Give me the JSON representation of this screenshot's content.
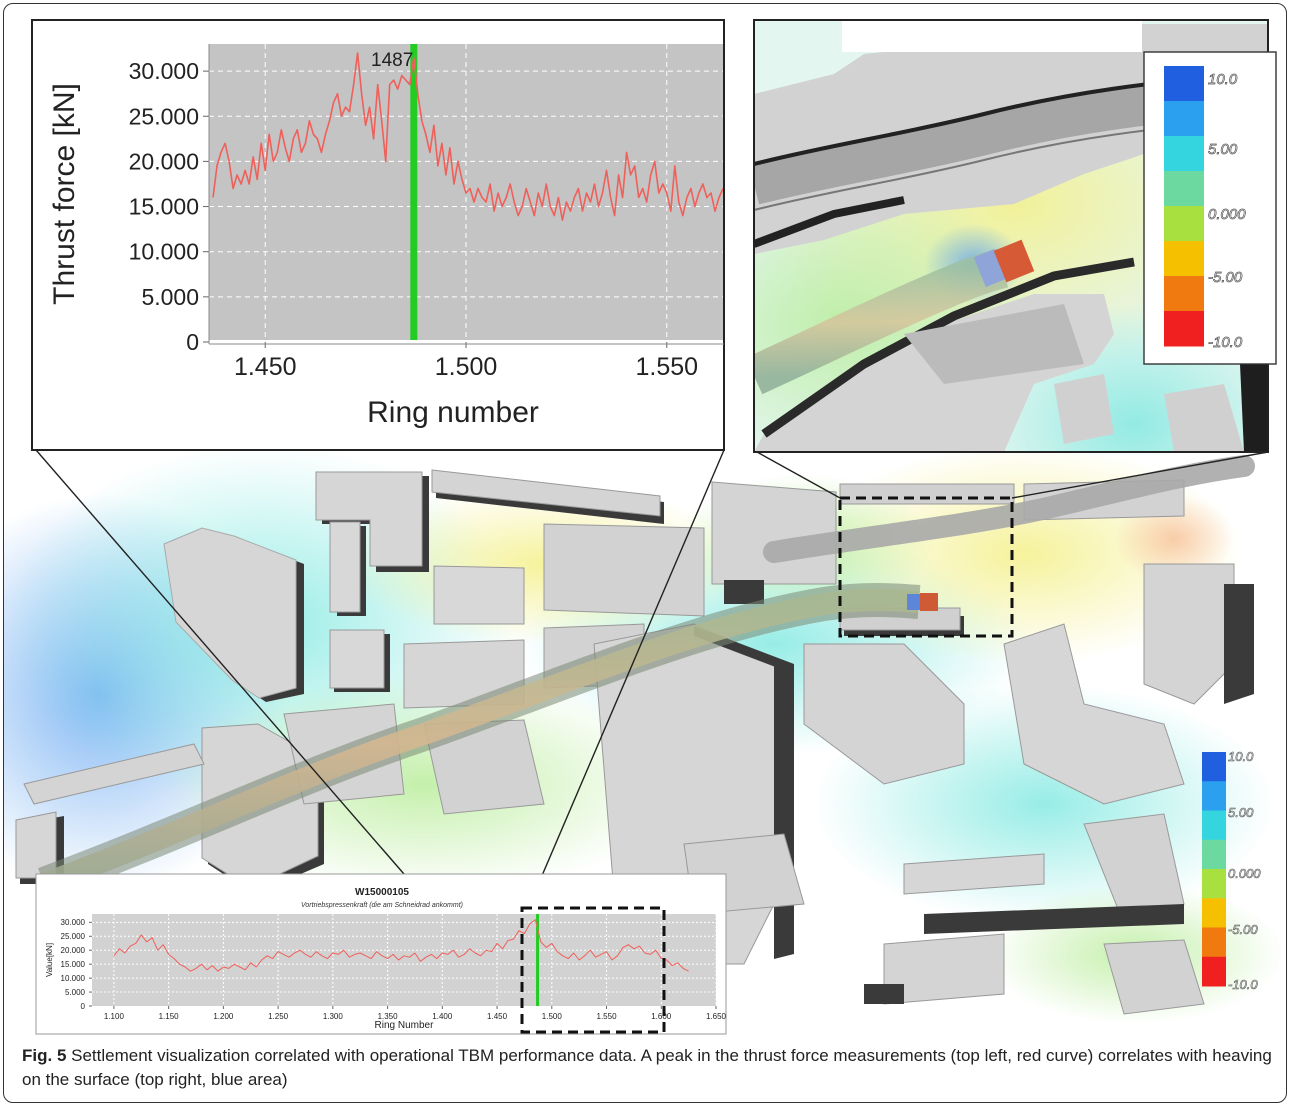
{
  "figure": {
    "caption_label": "Fig. 5",
    "caption_text": "Settlement visualization correlated with operational TBM performance data. A peak in the thrust force measurements (top left, red curve) correlates with heaving on the surface (top right, blue area)"
  },
  "colors": {
    "curve": "#f0605a",
    "marker": "#22cc22",
    "plot_bg": "#c4c4c4",
    "building": "#d2d2d2",
    "shadow": "#3a3a3a"
  },
  "legend_scale": {
    "labels": [
      "10.0",
      "5.00",
      "0.000",
      "-5.00",
      "-10.0"
    ],
    "colors": [
      "#1f5fe0",
      "#2aa0ee",
      "#35d5e0",
      "#6cd9a0",
      "#a8e040",
      "#f5c000",
      "#f07a10",
      "#f02020"
    ]
  },
  "chart_data": [
    {
      "id": "zoom",
      "type": "line",
      "title": "",
      "xlabel": "Ring number",
      "ylabel": "Thrust force [kN]",
      "xlim": [
        1436,
        1564
      ],
      "ylim": [
        0,
        33000
      ],
      "xticks": [
        1450,
        1500,
        1550
      ],
      "xtick_labels": [
        "1.450",
        "1.500",
        "1.550"
      ],
      "yticks": [
        0,
        5000,
        10000,
        15000,
        20000,
        25000,
        30000
      ],
      "ytick_labels": [
        "0",
        "5.000",
        "10.000",
        "15.000",
        "20.000",
        "25.000",
        "30.000"
      ],
      "marker_x": 1487,
      "marker_label": "1487",
      "grid": true,
      "series": [
        {
          "x": [
            1437,
            1438,
            1439,
            1440,
            1441,
            1442,
            1443,
            1444,
            1445,
            1446,
            1447,
            1448,
            1449,
            1450,
            1451,
            1452,
            1453,
            1454,
            1455,
            1456,
            1457,
            1458,
            1459,
            1460,
            1461,
            1462,
            1463,
            1464,
            1465,
            1466,
            1467,
            1468,
            1469,
            1470,
            1471,
            1472,
            1473,
            1474,
            1475,
            1476,
            1477,
            1478,
            1479,
            1480,
            1481,
            1482,
            1483,
            1484,
            1485,
            1486,
            1487,
            1488,
            1489,
            1490,
            1491,
            1492,
            1493,
            1494,
            1495,
            1496,
            1497,
            1498,
            1499,
            1500,
            1501,
            1502,
            1503,
            1504,
            1505,
            1506,
            1507,
            1508,
            1509,
            1510,
            1511,
            1512,
            1513,
            1514,
            1515,
            1516,
            1517,
            1518,
            1519,
            1520,
            1521,
            1522,
            1523,
            1524,
            1525,
            1526,
            1527,
            1528,
            1529,
            1530,
            1531,
            1532,
            1533,
            1534,
            1535,
            1536,
            1537,
            1538,
            1539,
            1540,
            1541,
            1542,
            1543,
            1544,
            1545,
            1546,
            1547,
            1548,
            1549,
            1550,
            1551,
            1552,
            1553,
            1554,
            1555,
            1556,
            1557,
            1558,
            1559,
            1560,
            1561,
            1562,
            1563,
            1564
          ],
          "y": [
            16000,
            19500,
            21000,
            22000,
            20000,
            17000,
            18500,
            17500,
            19000,
            17500,
            20500,
            18000,
            22000,
            19000,
            23000,
            20000,
            21000,
            23500,
            21500,
            20000,
            22500,
            23500,
            21000,
            22000,
            24500,
            23000,
            22500,
            21000,
            23000,
            24500,
            26500,
            27500,
            25000,
            26000,
            25500,
            28500,
            32000,
            27500,
            24000,
            26000,
            22500,
            28500,
            24500,
            20000,
            28500,
            29000,
            28000,
            29500,
            29000,
            28500,
            31500,
            27500,
            24500,
            23000,
            21000,
            24000,
            19500,
            22000,
            18500,
            21500,
            17500,
            20000,
            18000,
            16500,
            17000,
            15500,
            17000,
            16000,
            15500,
            17500,
            14500,
            16500,
            15000,
            16000,
            17500,
            15500,
            14000,
            15000,
            17000,
            15500,
            14000,
            16500,
            15000,
            17500,
            15000,
            14000,
            16000,
            13500,
            15500,
            14500,
            16000,
            17000,
            14500,
            16500,
            15500,
            17500,
            15000,
            16500,
            19000,
            16000,
            14000,
            18500,
            16000,
            21000,
            18500,
            19500,
            16000,
            17000,
            15500,
            18500,
            20000,
            16500,
            17500,
            16500,
            14500,
            19500,
            15500,
            14000,
            16000,
            17000,
            15000,
            16500,
            17500,
            16000,
            16500,
            14500,
            16000,
            17000
          ]
        }
      ]
    },
    {
      "id": "overview",
      "type": "line",
      "title": "W15000105",
      "subtitle": "Vortriebspressenkraft (die am Schneidrad ankommt)",
      "xlabel": "Ring Number",
      "ylabel": "Value[kN]",
      "xlim": [
        1080,
        1650
      ],
      "ylim": [
        0,
        33000
      ],
      "xticks": [
        1100,
        1150,
        1200,
        1250,
        1300,
        1350,
        1400,
        1450,
        1500,
        1550,
        1600,
        1650
      ],
      "xtick_labels": [
        "1.100",
        "1.150",
        "1.200",
        "1.250",
        "1.300",
        "1.350",
        "1.400",
        "1.450",
        "1.500",
        "1.550",
        "1.600",
        "1.650"
      ],
      "yticks": [
        0,
        5000,
        10000,
        15000,
        20000,
        25000,
        30000
      ],
      "ytick_labels": [
        "0",
        "5.000",
        "10.000",
        "15.000",
        "20.000",
        "25.000",
        "30.000"
      ],
      "marker_x": 1487,
      "grid": true,
      "series": [
        {
          "x": [
            1100,
            1105,
            1110,
            1115,
            1120,
            1125,
            1130,
            1135,
            1140,
            1145,
            1150,
            1155,
            1160,
            1165,
            1170,
            1175,
            1180,
            1185,
            1190,
            1195,
            1200,
            1205,
            1210,
            1215,
            1220,
            1225,
            1230,
            1235,
            1240,
            1245,
            1250,
            1255,
            1260,
            1265,
            1270,
            1275,
            1280,
            1285,
            1290,
            1295,
            1300,
            1305,
            1310,
            1315,
            1320,
            1325,
            1330,
            1335,
            1340,
            1345,
            1350,
            1355,
            1360,
            1365,
            1370,
            1375,
            1380,
            1385,
            1390,
            1395,
            1400,
            1405,
            1410,
            1415,
            1420,
            1425,
            1430,
            1435,
            1440,
            1445,
            1450,
            1455,
            1460,
            1465,
            1470,
            1475,
            1480,
            1485,
            1490,
            1495,
            1500,
            1505,
            1510,
            1515,
            1520,
            1525,
            1530,
            1535,
            1540,
            1545,
            1550,
            1555,
            1560,
            1565,
            1570,
            1575,
            1580,
            1585,
            1590,
            1595,
            1600,
            1605,
            1610,
            1615,
            1620,
            1625
          ],
          "y": [
            18000,
            20500,
            19000,
            21500,
            22500,
            25500,
            23000,
            24500,
            20000,
            22000,
            18500,
            17000,
            15000,
            14000,
            12500,
            13500,
            15000,
            13000,
            14500,
            12500,
            14000,
            13500,
            15000,
            14000,
            13000,
            15500,
            14000,
            16500,
            18000,
            17000,
            19500,
            18500,
            17500,
            19000,
            20000,
            18500,
            17500,
            19500,
            18000,
            17000,
            19000,
            18500,
            20000,
            17500,
            18500,
            19000,
            18000,
            17000,
            19500,
            18000,
            17000,
            18500,
            16500,
            18000,
            17500,
            19000,
            16000,
            17500,
            18500,
            17000,
            19000,
            18500,
            20000,
            17500,
            18500,
            20500,
            19000,
            18000,
            20000,
            19500,
            22500,
            20500,
            23500,
            24000,
            27000,
            26000,
            29500,
            31000,
            23000,
            21000,
            22500,
            19500,
            18000,
            17000,
            19000,
            16500,
            18000,
            20000,
            17500,
            18500,
            19500,
            16500,
            18000,
            21000,
            22000,
            20500,
            21500,
            19000,
            18500,
            20000,
            17000,
            16500,
            14500,
            15500,
            13500,
            12500
          ]
        }
      ]
    }
  ]
}
